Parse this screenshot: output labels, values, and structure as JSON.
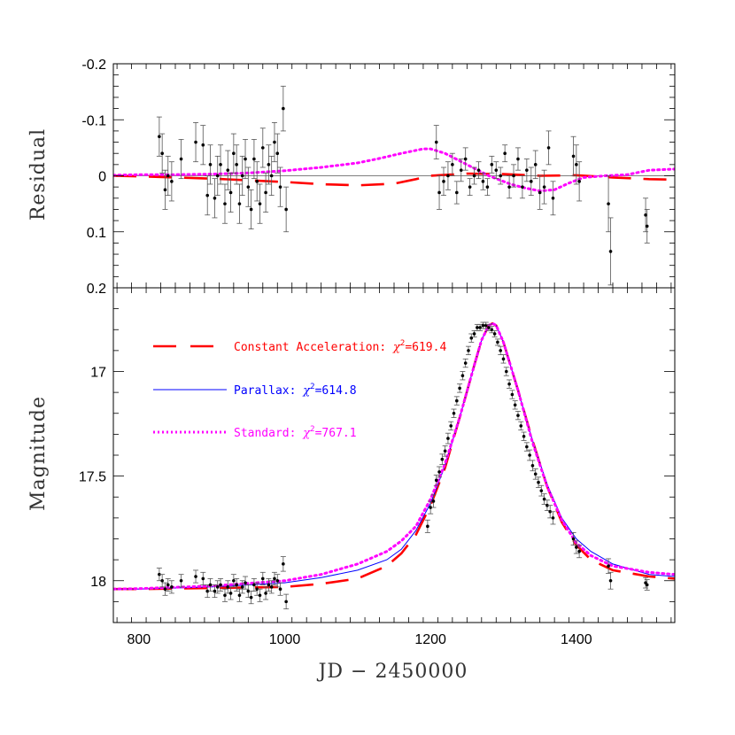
{
  "chart_data": [
    {
      "type": "scatter",
      "panel": "residual",
      "xlabel": "",
      "ylabel": "Residual",
      "xlim": [
        765,
        1535
      ],
      "ylim": [
        0.2,
        -0.2
      ],
      "y_inverted": true,
      "xticks": [
        800,
        1000,
        1200,
        1400
      ],
      "yticks": [
        -0.2,
        -0.1,
        0,
        0.1,
        0.2
      ],
      "ytick_labels": [
        "-0.2",
        "-0.1",
        "0",
        "0.1",
        "0.2"
      ],
      "reference_line": 0,
      "series": [
        {
          "style": "long-dash",
          "color": "#ff0000",
          "x": [
            765,
            800,
            850,
            900,
            950,
            1000,
            1050,
            1100,
            1150,
            1180,
            1200,
            1250,
            1300,
            1350,
            1400,
            1450,
            1500,
            1535
          ],
          "y": [
            0.0,
            0.001,
            0.003,
            0.005,
            0.008,
            0.011,
            0.015,
            0.017,
            0.014,
            0.006,
            0.0,
            -0.004,
            -0.003,
            0.0,
            -0.001,
            0.003,
            0.006,
            0.007
          ]
        },
        {
          "style": "dotted",
          "color": "#ff00ff",
          "x": [
            765,
            800,
            850,
            900,
            950,
            1000,
            1050,
            1100,
            1130,
            1160,
            1190,
            1200,
            1220,
            1250,
            1280,
            1310,
            1330,
            1350,
            1370,
            1390,
            1410,
            1440,
            1470,
            1500,
            1535
          ],
          "y": [
            -0.001,
            -0.002,
            -0.002,
            -0.003,
            -0.005,
            -0.009,
            -0.015,
            -0.023,
            -0.031,
            -0.04,
            -0.048,
            -0.048,
            -0.04,
            -0.02,
            0.0,
            0.015,
            0.022,
            0.027,
            0.025,
            0.013,
            0.003,
            0.0,
            -0.002,
            -0.01,
            -0.012
          ]
        },
        {
          "style": "points-errorbars",
          "color": "#000000",
          "x": [
            828,
            832,
            836,
            840,
            845,
            858,
            878,
            888,
            894,
            898,
            904,
            908,
            912,
            918,
            922,
            926,
            930,
            934,
            938,
            942,
            946,
            950,
            954,
            958,
            962,
            966,
            970,
            974,
            978,
            982,
            986,
            990,
            994,
            998,
            1002,
            1208,
            1212,
            1218,
            1224,
            1230,
            1236,
            1242,
            1248,
            1254,
            1260,
            1266,
            1272,
            1278,
            1284,
            1290,
            1296,
            1302,
            1308,
            1314,
            1320,
            1326,
            1332,
            1338,
            1344,
            1350,
            1356,
            1362,
            1368,
            1396,
            1400,
            1404,
            1444,
            1447,
            1495,
            1497
          ],
          "y": [
            -0.07,
            -0.04,
            0.025,
            0.0,
            0.01,
            -0.03,
            -0.06,
            -0.055,
            0.035,
            -0.02,
            0.04,
            0.0,
            -0.02,
            0.05,
            -0.01,
            0.03,
            -0.04,
            -0.02,
            0.05,
            0.0,
            -0.03,
            0.02,
            0.06,
            -0.03,
            0.01,
            0.05,
            -0.05,
            0.03,
            -0.02,
            0.0,
            -0.06,
            -0.04,
            0.02,
            -0.12,
            0.06,
            -0.06,
            0.03,
            0.01,
            0.0,
            -0.02,
            0.03,
            -0.01,
            -0.03,
            0.02,
            0.0,
            -0.01,
            0.01,
            0.02,
            -0.02,
            -0.01,
            0.0,
            -0.04,
            0.02,
            0.0,
            -0.03,
            0.02,
            -0.01,
            0.01,
            -0.02,
            0.03,
            0.02,
            -0.05,
            0.04,
            -0.035,
            -0.02,
            0.01,
            0.05,
            0.135,
            0.07,
            0.09
          ],
          "err": [
            0.035,
            0.035,
            0.035,
            0.035,
            0.035,
            0.035,
            0.035,
            0.035,
            0.035,
            0.035,
            0.035,
            0.035,
            0.035,
            0.035,
            0.035,
            0.035,
            0.035,
            0.035,
            0.035,
            0.035,
            0.035,
            0.035,
            0.035,
            0.035,
            0.035,
            0.035,
            0.035,
            0.035,
            0.035,
            0.035,
            0.035,
            0.035,
            0.035,
            0.04,
            0.04,
            0.03,
            0.03,
            0.025,
            0.025,
            0.02,
            0.02,
            0.02,
            0.02,
            0.015,
            0.015,
            0.015,
            0.015,
            0.015,
            0.015,
            0.015,
            0.015,
            0.015,
            0.02,
            0.02,
            0.02,
            0.02,
            0.02,
            0.025,
            0.025,
            0.03,
            0.03,
            0.03,
            0.03,
            0.035,
            0.035,
            0.035,
            0.05,
            0.06,
            0.03,
            0.03
          ]
        }
      ]
    },
    {
      "type": "scatter",
      "panel": "magnitude",
      "xlabel": "JD − 2450000",
      "ylabel": "Magnitude",
      "xlim": [
        765,
        1535
      ],
      "ylim": [
        18.2,
        16.6
      ],
      "y_inverted": true,
      "xticks": [
        800,
        1000,
        1200,
        1400
      ],
      "xtick_labels": [
        "800",
        "1000",
        "1200",
        "1400"
      ],
      "yticks": [
        17,
        17.5,
        18
      ],
      "ytick_labels": [
        "17",
        "17.5",
        "18"
      ],
      "legend": [
        {
          "label": "Constant Acceleration: ",
          "chi_symbol": "χ",
          "chi_exp": "2",
          "chi_value": "=619.4",
          "color": "#ff0000",
          "style": "long-dash"
        },
        {
          "label": "Parallax: ",
          "chi_symbol": "χ",
          "chi_exp": "2",
          "chi_value": "=614.8",
          "color": "#0000ff",
          "style": "solid"
        },
        {
          "label": "Standard: ",
          "chi_symbol": "χ",
          "chi_exp": "2",
          "chi_value": "=767.1",
          "color": "#ff00ff",
          "style": "dotted"
        }
      ],
      "series": [
        {
          "style": "long-dash",
          "color": "#ff0000",
          "x": [
            765,
            800,
            900,
            1000,
            1050,
            1100,
            1140,
            1160,
            1180,
            1200,
            1220,
            1240,
            1260,
            1270,
            1280,
            1285,
            1290,
            1300,
            1320,
            1340,
            1360,
            1380,
            1400,
            1420,
            1450,
            1500,
            1535
          ],
          "y": [
            18.04,
            18.04,
            18.035,
            18.03,
            18.015,
            17.99,
            17.93,
            17.87,
            17.78,
            17.64,
            17.46,
            17.22,
            16.97,
            16.85,
            16.78,
            16.77,
            16.78,
            16.86,
            17.09,
            17.33,
            17.55,
            17.72,
            17.83,
            17.9,
            17.95,
            17.98,
            17.99
          ]
        },
        {
          "style": "solid",
          "color": "#0000ff",
          "x": [
            765,
            800,
            900,
            1000,
            1050,
            1100,
            1140,
            1160,
            1180,
            1200,
            1220,
            1240,
            1260,
            1270,
            1280,
            1285,
            1290,
            1300,
            1320,
            1340,
            1360,
            1380,
            1400,
            1420,
            1450,
            1500,
            1535
          ],
          "y": [
            18.04,
            18.04,
            18.03,
            18.01,
            17.985,
            17.95,
            17.9,
            17.85,
            17.76,
            17.63,
            17.45,
            17.22,
            16.97,
            16.85,
            16.78,
            16.77,
            16.78,
            16.86,
            17.09,
            17.33,
            17.54,
            17.7,
            17.8,
            17.86,
            17.92,
            17.97,
            17.98
          ]
        },
        {
          "style": "dotted",
          "color": "#ff00ff",
          "x": [
            765,
            800,
            900,
            1000,
            1050,
            1100,
            1140,
            1160,
            1180,
            1200,
            1220,
            1240,
            1260,
            1270,
            1280,
            1285,
            1290,
            1300,
            1320,
            1340,
            1360,
            1380,
            1400,
            1420,
            1450,
            1500,
            1535
          ],
          "y": [
            18.04,
            18.038,
            18.025,
            18.0,
            17.97,
            17.92,
            17.86,
            17.81,
            17.74,
            17.61,
            17.44,
            17.22,
            16.97,
            16.85,
            16.78,
            16.77,
            16.78,
            16.86,
            17.09,
            17.34,
            17.55,
            17.71,
            17.82,
            17.88,
            17.93,
            17.96,
            17.97
          ]
        },
        {
          "style": "points-errorbars",
          "color": "#000000",
          "x": [
            828,
            832,
            836,
            840,
            845,
            858,
            878,
            888,
            894,
            898,
            904,
            908,
            912,
            918,
            922,
            926,
            930,
            934,
            938,
            942,
            946,
            950,
            954,
            958,
            962,
            966,
            970,
            974,
            978,
            982,
            986,
            990,
            994,
            998,
            1002,
            1196,
            1200,
            1204,
            1208,
            1212,
            1216,
            1220,
            1224,
            1228,
            1232,
            1236,
            1240,
            1244,
            1248,
            1252,
            1256,
            1260,
            1264,
            1268,
            1272,
            1276,
            1280,
            1284,
            1288,
            1292,
            1296,
            1300,
            1304,
            1308,
            1312,
            1316,
            1320,
            1324,
            1328,
            1332,
            1336,
            1340,
            1344,
            1348,
            1352,
            1356,
            1360,
            1364,
            1368,
            1396,
            1400,
            1404,
            1444,
            1447,
            1495,
            1497
          ],
          "y": [
            17.97,
            18.0,
            18.04,
            18.02,
            18.03,
            18.0,
            17.98,
            17.99,
            18.05,
            18.02,
            18.05,
            18.03,
            18.02,
            18.07,
            18.03,
            18.06,
            18.0,
            18.02,
            18.07,
            18.03,
            18.01,
            18.05,
            18.08,
            18.02,
            18.04,
            18.07,
            17.99,
            18.06,
            18.02,
            18.03,
            17.99,
            18.0,
            18.04,
            17.92,
            18.1,
            17.74,
            17.65,
            17.62,
            17.52,
            17.48,
            17.42,
            17.38,
            17.32,
            17.26,
            17.2,
            17.14,
            17.08,
            17.02,
            16.96,
            16.9,
            16.84,
            16.82,
            16.79,
            16.79,
            16.78,
            16.78,
            16.79,
            16.8,
            16.82,
            16.86,
            16.9,
            16.94,
            17.0,
            17.06,
            17.11,
            17.16,
            17.21,
            17.26,
            17.31,
            17.36,
            17.4,
            17.45,
            17.49,
            17.53,
            17.57,
            17.61,
            17.64,
            17.67,
            17.7,
            17.8,
            17.84,
            17.86,
            17.93,
            18.0,
            18.01,
            18.02
          ],
          "err": [
            0.03,
            0.03,
            0.03,
            0.03,
            0.03,
            0.03,
            0.03,
            0.03,
            0.03,
            0.03,
            0.03,
            0.03,
            0.03,
            0.03,
            0.03,
            0.03,
            0.03,
            0.03,
            0.03,
            0.03,
            0.03,
            0.03,
            0.03,
            0.03,
            0.03,
            0.03,
            0.03,
            0.03,
            0.03,
            0.03,
            0.03,
            0.03,
            0.03,
            0.035,
            0.035,
            0.03,
            0.03,
            0.03,
            0.025,
            0.025,
            0.025,
            0.025,
            0.025,
            0.02,
            0.02,
            0.02,
            0.02,
            0.02,
            0.02,
            0.02,
            0.02,
            0.015,
            0.015,
            0.015,
            0.015,
            0.015,
            0.015,
            0.015,
            0.015,
            0.015,
            0.02,
            0.02,
            0.02,
            0.02,
            0.02,
            0.02,
            0.02,
            0.02,
            0.02,
            0.02,
            0.025,
            0.025,
            0.025,
            0.025,
            0.025,
            0.025,
            0.025,
            0.03,
            0.03,
            0.03,
            0.03,
            0.03,
            0.035,
            0.04,
            0.025,
            0.025
          ]
        }
      ]
    }
  ]
}
